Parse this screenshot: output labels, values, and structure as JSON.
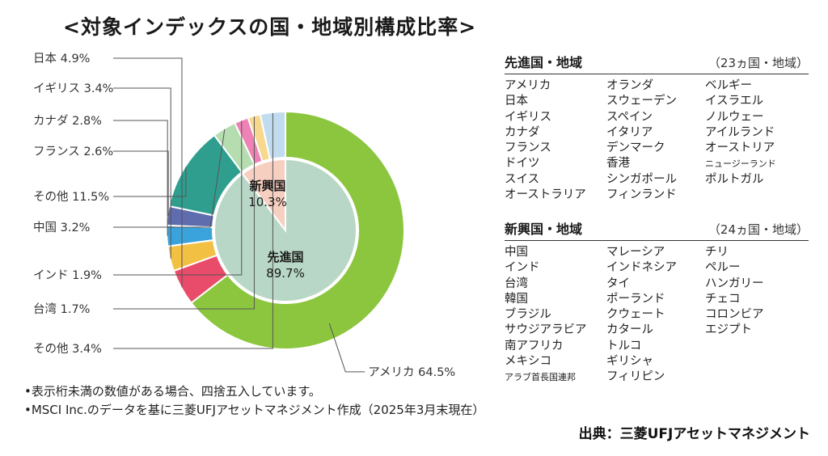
{
  "title": "<対象インデックスの国・地域別構成比率>",
  "chart_data": {
    "type": "pie",
    "outer_ring": [
      {
        "label": "アメリカ",
        "value": 64.5,
        "color": "#8cc63e"
      },
      {
        "label": "日本",
        "value": 4.9,
        "color": "#e94b6a"
      },
      {
        "label": "イギリス",
        "value": 3.4,
        "color": "#f2c143"
      },
      {
        "label": "カナダ",
        "value": 2.8,
        "color": "#3aa3dc"
      },
      {
        "label": "フランス",
        "value": 2.6,
        "color": "#5f6cad"
      },
      {
        "label": "その他",
        "value": 11.5,
        "color": "#2f9e8f"
      },
      {
        "label": "中国",
        "value": 3.2,
        "color": "#b5ddb0"
      },
      {
        "label": "インド",
        "value": 1.9,
        "color": "#ee82b5"
      },
      {
        "label": "台湾",
        "value": 1.7,
        "color": "#f7d88f"
      },
      {
        "label": "その他",
        "value": 3.4,
        "color": "#c2dcef"
      }
    ],
    "outer_labels": [
      {
        "text": "アメリカ 64.5%",
        "seg": 0
      },
      {
        "text": "日本 4.9%",
        "seg": 1
      },
      {
        "text": "イギリス 3.4%",
        "seg": 2
      },
      {
        "text": "カナダ 2.8%",
        "seg": 3
      },
      {
        "text": "フランス 2.6%",
        "seg": 4
      },
      {
        "text": "その他 11.5%",
        "seg": 5
      },
      {
        "text": "中国 3.2%",
        "seg": 6
      },
      {
        "text": "インド 1.9%",
        "seg": 7
      },
      {
        "text": "台湾 1.7%",
        "seg": 8
      },
      {
        "text": "その他 3.4%",
        "seg": 9
      }
    ],
    "inner_ring": [
      {
        "name": "先進国",
        "value": 89.7,
        "label": "89.7%",
        "color": "#b8d7c6"
      },
      {
        "name": "新興国",
        "value": 10.3,
        "label": "10.3%",
        "color": "#f7cfc0"
      }
    ]
  },
  "developed": {
    "title": "先進国・地域",
    "count": "（23ヵ国・地域）",
    "columns": [
      [
        "アメリカ",
        "日本",
        "イギリス",
        "カナダ",
        "フランス",
        "ドイツ",
        "スイス",
        "オーストラリア"
      ],
      [
        "オランダ",
        "スウェーデン",
        "スペイン",
        "イタリア",
        "デンマーク",
        "香港",
        "シンガポール",
        "フィンランド"
      ],
      [
        "ベルギー",
        "イスラエル",
        "ノルウェー",
        "アイルランド",
        "オーストリア",
        "ニュージーランド",
        "ポルトガル"
      ]
    ]
  },
  "emerging": {
    "title": "新興国・地域",
    "count": "（24ヵ国・地域）",
    "columns": [
      [
        "中国",
        "インド",
        "台湾",
        "韓国",
        "ブラジル",
        "サウジアラビア",
        "南アフリカ",
        "メキシコ",
        "アラブ首長国連邦"
      ],
      [
        "マレーシア",
        "インドネシア",
        "タイ",
        "ポーランド",
        "クウェート",
        "カタール",
        "トルコ",
        "ギリシャ",
        "フィリピン"
      ],
      [
        "チリ",
        "ペルー",
        "ハンガリー",
        "チェコ",
        "コロンビア",
        "エジプト"
      ]
    ]
  },
  "notes": [
    "•表示桁未満の数値がある場合、四捨五入しています。",
    "•MSCI Inc.のデータを基に三菱UFJアセットマネジメント作成（2025年3月末現在）"
  ],
  "source": "出典：三菱UFJアセットマネジメント"
}
